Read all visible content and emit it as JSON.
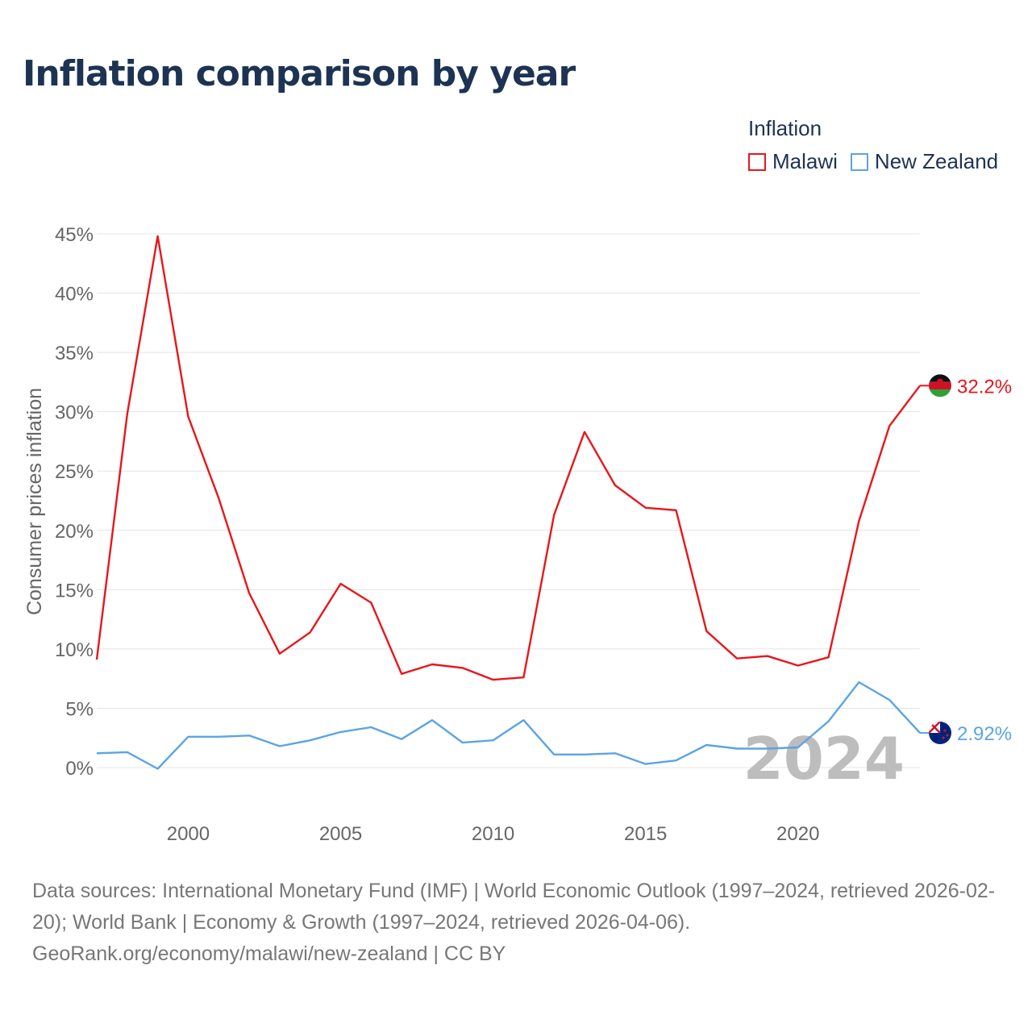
{
  "title": "Inflation comparison by year",
  "legend": {
    "title": "Inflation",
    "items": [
      {
        "label": "Malawi",
        "color": "#e8161b"
      },
      {
        "label": "New Zealand",
        "color": "#5ba4e6"
      }
    ]
  },
  "year_watermark": "2024",
  "footer": {
    "sources": "Data sources: International Monetary Fund (IMF) | World Economic Outlook (1997–2024, retrieved 2026-02-20); World Bank | Economy & Growth (1997–2024, retrieved 2026-04-06).",
    "attribution": "GeoRank.org/economy/malawi/new-zealand | CC BY"
  },
  "chart_data": {
    "type": "line",
    "title": "Inflation comparison by year",
    "xlabel": "",
    "ylabel": "Consumer prices inflation",
    "xlim": [
      1997,
      2024
    ],
    "ylim": [
      0,
      45
    ],
    "y_ticks": [
      0,
      5,
      10,
      15,
      20,
      25,
      30,
      35,
      40,
      45
    ],
    "y_tick_labels": [
      "0%",
      "5%",
      "10%",
      "15%",
      "20%",
      "25%",
      "30%",
      "35%",
      "40%",
      "45%"
    ],
    "x_ticks": [
      2000,
      2005,
      2010,
      2015,
      2020
    ],
    "x_tick_labels": [
      "2000",
      "2005",
      "2010",
      "2015",
      "2020"
    ],
    "grid": true,
    "legend_position": "top-right",
    "x": [
      1997,
      1998,
      1999,
      2000,
      2001,
      2002,
      2003,
      2004,
      2005,
      2006,
      2007,
      2008,
      2009,
      2010,
      2011,
      2012,
      2013,
      2014,
      2015,
      2016,
      2017,
      2018,
      2019,
      2020,
      2021,
      2022,
      2023,
      2024
    ],
    "series": [
      {
        "name": "Malawi",
        "color": "#e8161b",
        "end_label": "32.2%",
        "values": [
          9.1,
          29.8,
          44.8,
          29.6,
          22.7,
          14.7,
          9.6,
          11.4,
          15.5,
          13.9,
          7.9,
          8.7,
          8.4,
          7.4,
          7.6,
          21.3,
          28.3,
          23.8,
          21.9,
          21.7,
          11.5,
          9.2,
          9.4,
          8.6,
          9.3,
          20.8,
          28.8,
          32.2
        ]
      },
      {
        "name": "New Zealand",
        "color": "#5ba4e6",
        "end_label": "2.92%",
        "values": [
          1.2,
          1.3,
          -0.1,
          2.6,
          2.6,
          2.7,
          1.8,
          2.3,
          3.0,
          3.4,
          2.4,
          4.0,
          2.1,
          2.3,
          4.0,
          1.1,
          1.1,
          1.2,
          0.3,
          0.6,
          1.9,
          1.6,
          1.6,
          1.7,
          3.9,
          7.2,
          5.7,
          2.92
        ]
      }
    ]
  }
}
